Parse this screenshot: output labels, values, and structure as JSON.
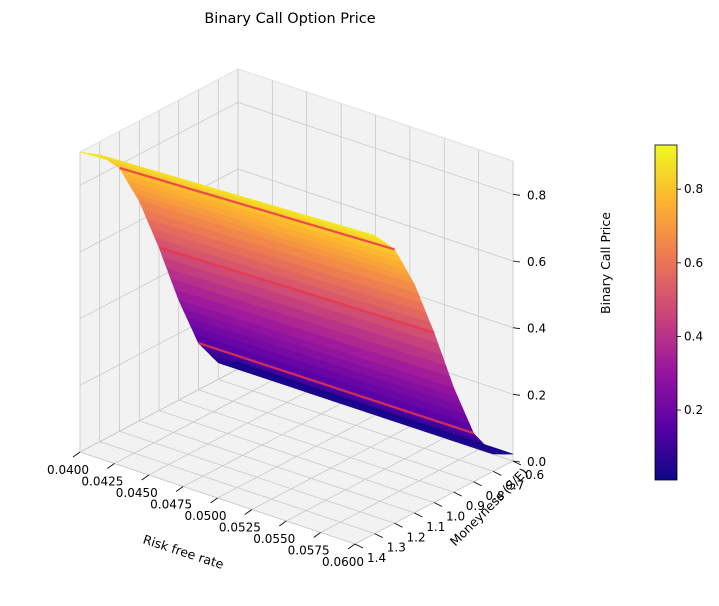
{
  "chart_data": {
    "type": "surface3d",
    "title": "Binary Call Option Price",
    "xlabel": "Risk free rate",
    "ylabel": "Moneyness (S/E)",
    "zlabel": "Binary Call Price",
    "xlim": [
      0.04,
      0.06
    ],
    "ylim": [
      0.6,
      1.4
    ],
    "zlim": [
      0.0,
      0.9
    ],
    "x_ticks": [
      "0.0400",
      "0.0425",
      "0.0450",
      "0.0475",
      "0.0500",
      "0.0525",
      "0.0550",
      "0.0575",
      "0.0600"
    ],
    "y_ticks": [
      "0.6",
      "0.7",
      "0.8",
      "0.9",
      "1.0",
      "1.1",
      "1.2",
      "1.3",
      "1.4"
    ],
    "z_ticks": [
      "0.0",
      "0.2",
      "0.4",
      "0.6",
      "0.8"
    ],
    "colorbar_ticks": [
      "0.2",
      "0.4",
      "0.6",
      "0.8"
    ],
    "colorbar_range": [
      0.01,
      0.92
    ],
    "colormap": "plasma",
    "colormap_stops": [
      "#0d0887",
      "#5c01a6",
      "#9c179e",
      "#cc4778",
      "#ed7953",
      "#fdb42f",
      "#f0f921"
    ],
    "contour_color": "#e8364d",
    "contour_moneyness": [
      0.8,
      1.0,
      1.2
    ],
    "grid": true,
    "surface_profile": {
      "moneyness": [
        0.6,
        0.7,
        0.8,
        0.9,
        1.0,
        1.1,
        1.2,
        1.3,
        1.4
      ],
      "price": [
        0.02,
        0.05,
        0.14,
        0.3,
        0.49,
        0.66,
        0.79,
        0.86,
        0.9
      ]
    }
  }
}
